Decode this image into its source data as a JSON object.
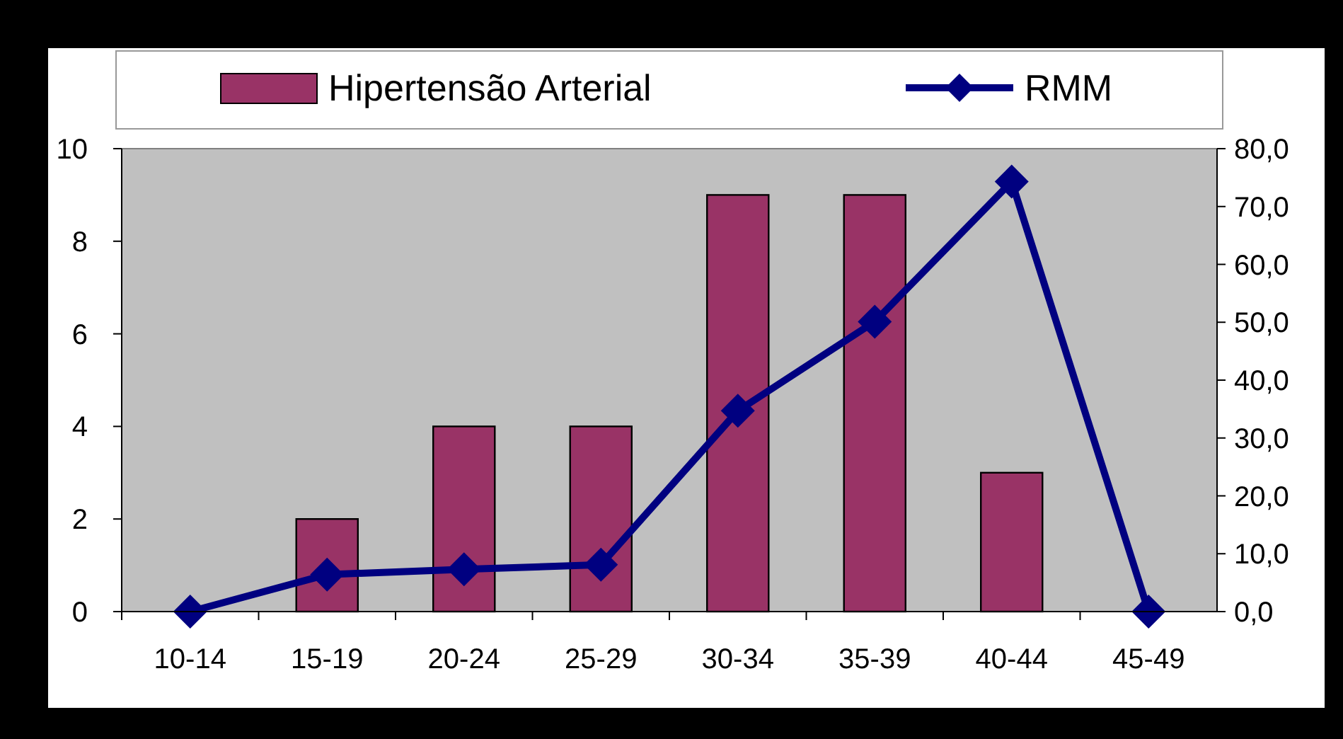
{
  "chart_data": {
    "type": "bar",
    "categories": [
      "10-14",
      "15-19",
      "20-24",
      "25-29",
      "30-34",
      "35-39",
      "40-44",
      "45-49"
    ],
    "series": [
      {
        "name": "Hipertensão Arterial",
        "color": "#993366",
        "values": [
          0,
          2,
          4,
          4,
          9,
          9,
          3,
          0
        ]
      },
      {
        "name": "RMM",
        "type": "line",
        "axis": "y2",
        "color": "#000080",
        "marker": "diamond",
        "values": [
          0,
          6.4,
          7.3,
          8.1,
          34.7,
          50.1,
          74.3,
          0
        ]
      }
    ],
    "ylim": [
      0,
      10
    ],
    "yticks": [
      0,
      2,
      4,
      6,
      8,
      10
    ],
    "y2lim": [
      0,
      80
    ],
    "y2ticks": [
      {
        "value": 0,
        "label": "0,0"
      },
      {
        "value": 10,
        "label": "10,0"
      },
      {
        "value": 20,
        "label": "20,0"
      },
      {
        "value": 30,
        "label": "30,0"
      },
      {
        "value": 40,
        "label": "40,0"
      },
      {
        "value": 50,
        "label": "50,0"
      },
      {
        "value": 60,
        "label": "60,0"
      },
      {
        "value": 70,
        "label": "70,0"
      },
      {
        "value": 80,
        "label": "80,0"
      }
    ],
    "legend": "top",
    "grid": false
  }
}
